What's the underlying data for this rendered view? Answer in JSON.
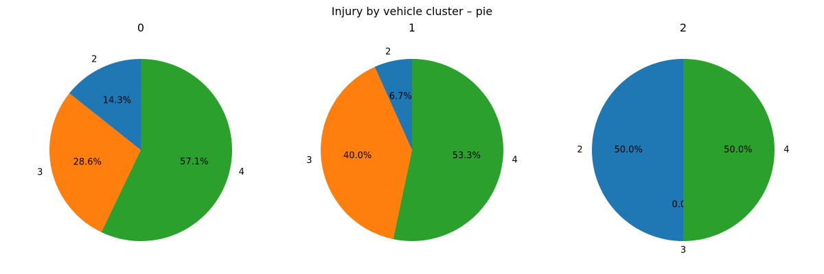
{
  "suptitle": "Injury by vehicle cluster – pie",
  "chart_data": [
    {
      "type": "pie",
      "title": "0",
      "labels": [
        "2",
        "3",
        "4"
      ],
      "values": [
        14.3,
        28.6,
        57.1
      ],
      "pct_labels": [
        "14.3%",
        "28.6%",
        "57.1%"
      ],
      "colors": [
        "#1f77b4",
        "#ff7f0e",
        "#2ca02c"
      ],
      "start_angle_deg": 90,
      "direction": "counterclockwise"
    },
    {
      "type": "pie",
      "title": "1",
      "labels": [
        "2",
        "3",
        "4"
      ],
      "values": [
        6.7,
        40.0,
        53.3
      ],
      "pct_labels": [
        "6.7%",
        "40.0%",
        "53.3%"
      ],
      "colors": [
        "#1f77b4",
        "#ff7f0e",
        "#2ca02c"
      ],
      "start_angle_deg": 90,
      "direction": "counterclockwise"
    },
    {
      "type": "pie",
      "title": "2",
      "labels": [
        "2",
        "3",
        "4"
      ],
      "values": [
        50.0,
        0.0,
        50.0
      ],
      "pct_labels": [
        "50.0%",
        "0.0%",
        "50.0%"
      ],
      "colors": [
        "#1f77b4",
        "#ff7f0e",
        "#2ca02c"
      ],
      "start_angle_deg": 90,
      "direction": "counterclockwise"
    }
  ]
}
